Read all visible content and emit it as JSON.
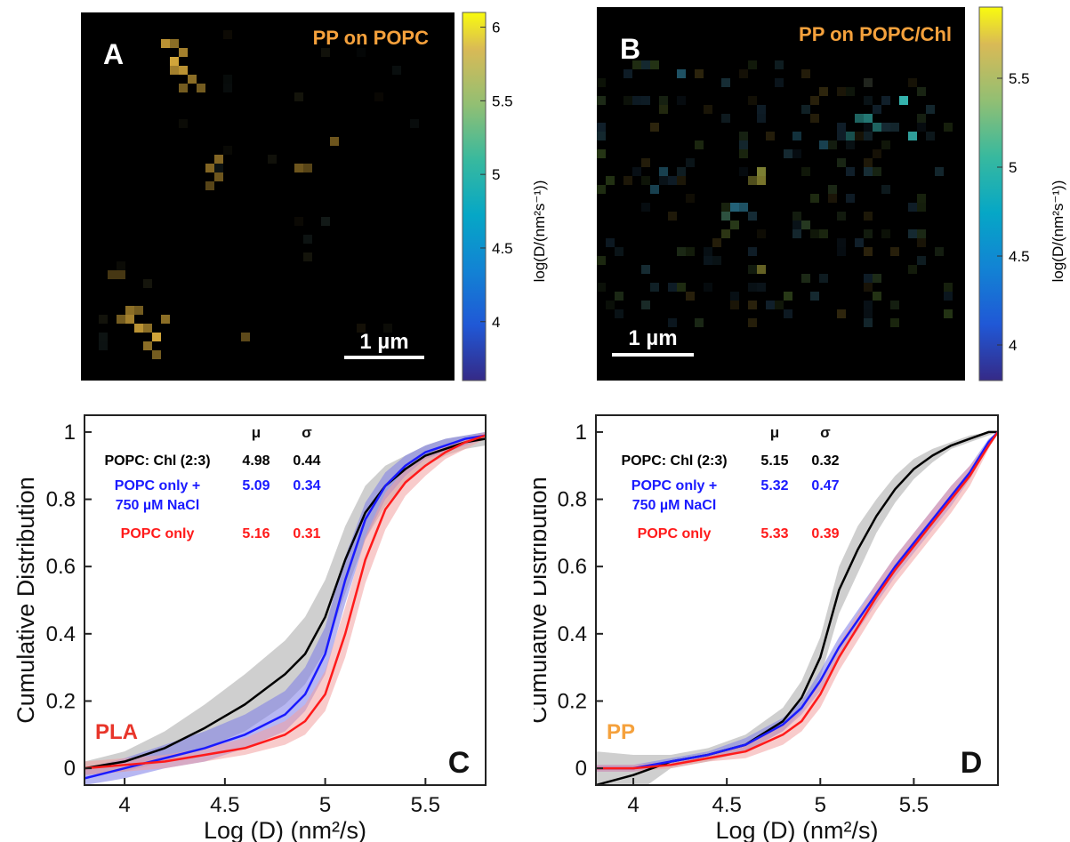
{
  "panels": {
    "A": {
      "letter": "A",
      "title": "PP on POPC",
      "scalebar": "1 µm",
      "colorbar": {
        "ticks": [
          "4",
          "4.5",
          "5",
          "5.5",
          "6"
        ],
        "range": [
          3.6,
          6.1
        ]
      }
    },
    "B": {
      "letter": "B",
      "title": "PP on POPC/Chl",
      "scalebar": "1 µm",
      "colorbar": {
        "ticks": [
          "4",
          "4.5",
          "5",
          "5.5"
        ],
        "range": [
          3.8,
          5.9
        ]
      }
    },
    "colorbar_label": "log(D/(nm²s⁻¹))",
    "colors": {
      "title_orange": "#f5a13c",
      "pla_red": "#e8352a",
      "pp_orange": "#f5a13c"
    }
  },
  "stats_header": {
    "mu": "μ",
    "sigma": "σ"
  },
  "chart_data": [
    {
      "type": "line",
      "panel_letter": "C",
      "label": "PLA",
      "xlabel": "Log (D) (nm²/s)",
      "ylabel": "Cumulative Distribution",
      "xlim": [
        3.8,
        5.8
      ],
      "ylim": [
        -0.05,
        1.05
      ],
      "xticks": [
        4,
        4.5,
        5,
        5.5
      ],
      "xtick_labels": [
        "4",
        "4.5",
        "5",
        "5.5"
      ],
      "yticks": [
        0,
        0.2,
        0.4,
        0.6,
        0.8,
        1
      ],
      "ytick_labels": [
        "0",
        "0.2",
        "0.4",
        "0.6",
        "0.8",
        "1"
      ],
      "grid": false,
      "series": [
        {
          "name": "POPC: Chl (2:3)",
          "color": "#000000",
          "band": "#a8a8a8",
          "mu": "4.98",
          "sigma": "0.44",
          "x": [
            3.8,
            4.0,
            4.2,
            4.4,
            4.6,
            4.8,
            4.9,
            5.0,
            5.1,
            5.2,
            5.3,
            5.4,
            5.5,
            5.6,
            5.7,
            5.8
          ],
          "y": [
            0.0,
            0.02,
            0.06,
            0.12,
            0.19,
            0.28,
            0.34,
            0.45,
            0.62,
            0.76,
            0.84,
            0.89,
            0.93,
            0.95,
            0.97,
            0.98
          ],
          "lo": [
            -0.02,
            -0.01,
            0.02,
            0.06,
            0.11,
            0.19,
            0.25,
            0.35,
            0.52,
            0.68,
            0.78,
            0.85,
            0.9,
            0.93,
            0.95,
            0.96
          ],
          "hi": [
            0.02,
            0.05,
            0.11,
            0.19,
            0.28,
            0.38,
            0.45,
            0.56,
            0.72,
            0.84,
            0.9,
            0.93,
            0.96,
            0.98,
            0.99,
            1.0
          ]
        },
        {
          "name": "POPC only + 750 µM NaCl",
          "color": "#1a1aff",
          "band": "#7b7be8",
          "mu": "5.09",
          "sigma": "0.34",
          "x": [
            3.8,
            4.0,
            4.2,
            4.4,
            4.6,
            4.8,
            4.9,
            5.0,
            5.1,
            5.2,
            5.3,
            5.4,
            5.5,
            5.6,
            5.7,
            5.8
          ],
          "y": [
            -0.03,
            0.0,
            0.03,
            0.06,
            0.1,
            0.16,
            0.22,
            0.34,
            0.56,
            0.74,
            0.84,
            0.9,
            0.94,
            0.96,
            0.98,
            0.99
          ],
          "lo": [
            -0.05,
            -0.03,
            0.0,
            0.02,
            0.06,
            0.11,
            0.17,
            0.28,
            0.49,
            0.68,
            0.8,
            0.87,
            0.92,
            0.94,
            0.96,
            0.98
          ],
          "hi": [
            0.0,
            0.03,
            0.07,
            0.11,
            0.16,
            0.23,
            0.3,
            0.42,
            0.63,
            0.79,
            0.88,
            0.93,
            0.96,
            0.98,
            0.99,
            1.0
          ]
        },
        {
          "name": "POPC only",
          "color": "#ff1a1a",
          "band": "#f2a0a0",
          "mu": "5.16",
          "sigma": "0.31",
          "x": [
            3.8,
            4.0,
            4.2,
            4.4,
            4.6,
            4.8,
            4.9,
            5.0,
            5.1,
            5.2,
            5.3,
            5.4,
            5.5,
            5.6,
            5.7,
            5.8
          ],
          "y": [
            0.0,
            0.01,
            0.02,
            0.04,
            0.06,
            0.1,
            0.14,
            0.22,
            0.4,
            0.62,
            0.77,
            0.85,
            0.9,
            0.94,
            0.97,
            0.99
          ],
          "lo": [
            -0.02,
            -0.01,
            0.0,
            0.02,
            0.04,
            0.07,
            0.1,
            0.17,
            0.33,
            0.55,
            0.71,
            0.81,
            0.87,
            0.92,
            0.95,
            0.98
          ],
          "hi": [
            0.02,
            0.03,
            0.04,
            0.06,
            0.09,
            0.14,
            0.19,
            0.29,
            0.48,
            0.69,
            0.82,
            0.89,
            0.93,
            0.96,
            0.98,
            1.0
          ]
        }
      ]
    },
    {
      "type": "line",
      "panel_letter": "D",
      "label": "PP",
      "xlabel": "Log (D) (nm²/s)",
      "ylabel": "Cumulative Distribution",
      "xlim": [
        3.8,
        5.95
      ],
      "ylim": [
        -0.05,
        1.05
      ],
      "xticks": [
        4,
        4.5,
        5,
        5.5
      ],
      "xtick_labels": [
        "4",
        "4.5",
        "5",
        "5.5"
      ],
      "yticks": [
        0,
        0.2,
        0.4,
        0.6,
        0.8,
        1
      ],
      "ytick_labels": [
        "0",
        "0.2",
        "0.4",
        "0.6",
        "0.8",
        "1"
      ],
      "grid": false,
      "series": [
        {
          "name": "POPC: Chl (2:3)",
          "color": "#000000",
          "band": "#a8a8a8",
          "mu": "5.15",
          "sigma": "0.32",
          "x": [
            3.8,
            4.0,
            4.2,
            4.4,
            4.6,
            4.8,
            4.9,
            5.0,
            5.1,
            5.2,
            5.3,
            5.4,
            5.5,
            5.6,
            5.7,
            5.8,
            5.9,
            5.95
          ],
          "y": [
            -0.05,
            -0.02,
            0.02,
            0.04,
            0.07,
            0.14,
            0.21,
            0.33,
            0.53,
            0.65,
            0.75,
            0.83,
            0.89,
            0.93,
            0.96,
            0.98,
            1.0,
            1.0
          ],
          "lo": [
            -0.15,
            -0.08,
            0.0,
            0.02,
            0.05,
            0.11,
            0.17,
            0.27,
            0.46,
            0.58,
            0.7,
            0.79,
            0.86,
            0.91,
            0.95,
            0.97,
            0.99,
            1.0
          ],
          "hi": [
            0.05,
            0.04,
            0.04,
            0.06,
            0.1,
            0.18,
            0.26,
            0.39,
            0.6,
            0.72,
            0.8,
            0.87,
            0.92,
            0.95,
            0.97,
            0.99,
            1.0,
            1.0
          ]
        },
        {
          "name": "POPC only + 750 µM NaCl",
          "color": "#1a1aff",
          "band": "#7b7be8",
          "mu": "5.32",
          "sigma": "0.47",
          "x": [
            3.8,
            4.0,
            4.2,
            4.4,
            4.6,
            4.8,
            4.9,
            5.0,
            5.1,
            5.2,
            5.3,
            5.4,
            5.5,
            5.6,
            5.7,
            5.8,
            5.9,
            5.95
          ],
          "y": [
            0.0,
            0.0,
            0.02,
            0.04,
            0.07,
            0.13,
            0.18,
            0.26,
            0.36,
            0.44,
            0.52,
            0.6,
            0.67,
            0.74,
            0.81,
            0.88,
            0.97,
            1.0
          ],
          "lo": [
            -0.01,
            -0.01,
            0.01,
            0.03,
            0.05,
            0.11,
            0.16,
            0.23,
            0.33,
            0.41,
            0.49,
            0.57,
            0.64,
            0.71,
            0.78,
            0.86,
            0.96,
            1.0
          ],
          "hi": [
            0.01,
            0.01,
            0.03,
            0.05,
            0.09,
            0.15,
            0.2,
            0.29,
            0.39,
            0.47,
            0.55,
            0.63,
            0.7,
            0.77,
            0.84,
            0.9,
            0.98,
            1.0
          ]
        },
        {
          "name": "POPC only",
          "color": "#ff1a1a",
          "band": "#f2a0a0",
          "mu": "5.33",
          "sigma": "0.39",
          "x": [
            3.8,
            4.0,
            4.2,
            4.4,
            4.6,
            4.8,
            4.9,
            5.0,
            5.1,
            5.2,
            5.3,
            5.4,
            5.5,
            5.6,
            5.7,
            5.8,
            5.9,
            5.95
          ],
          "y": [
            0.0,
            0.0,
            0.01,
            0.03,
            0.05,
            0.1,
            0.14,
            0.22,
            0.33,
            0.42,
            0.51,
            0.59,
            0.66,
            0.73,
            0.8,
            0.87,
            0.96,
            1.0
          ],
          "lo": [
            -0.01,
            -0.01,
            0.0,
            0.02,
            0.03,
            0.07,
            0.11,
            0.18,
            0.29,
            0.38,
            0.47,
            0.55,
            0.62,
            0.69,
            0.76,
            0.84,
            0.95,
            1.0
          ],
          "hi": [
            0.01,
            0.01,
            0.02,
            0.04,
            0.07,
            0.13,
            0.17,
            0.26,
            0.37,
            0.46,
            0.55,
            0.63,
            0.7,
            0.77,
            0.84,
            0.9,
            0.97,
            1.0
          ]
        }
      ]
    }
  ]
}
